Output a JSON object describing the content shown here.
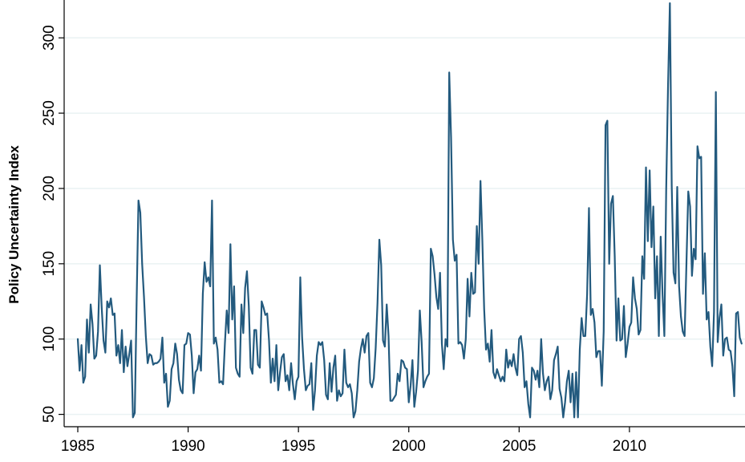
{
  "chart_data": {
    "type": "line",
    "ylabel": "Policy Uncertainty Index",
    "xlim": [
      1985,
      2015
    ],
    "ylim": [
      45,
      323
    ],
    "x_ticks": [
      "1985",
      "1990",
      "1995",
      "2000",
      "2005",
      "2010"
    ],
    "y_ticks": [
      "50",
      "100",
      "150",
      "200",
      "250",
      "300"
    ],
    "grid": true,
    "line_color": "#235a7e",
    "series": [
      {
        "x_start": 1985.0,
        "step": 0.08333,
        "values": [
          100,
          79,
          96,
          71,
          75,
          113,
          91,
          123,
          110,
          87,
          89,
          105,
          149,
          121,
          99,
          91,
          125,
          121,
          127,
          116,
          117,
          89,
          96,
          84,
          106,
          78,
          95,
          82,
          90,
          99,
          48,
          51,
          125,
          192,
          184,
          150,
          128,
          102,
          84,
          90,
          89,
          83,
          84,
          84,
          85,
          87,
          101,
          71,
          77,
          55,
          59,
          80,
          84,
          97,
          90,
          73,
          66,
          64,
          96,
          97,
          104,
          103,
          89,
          64,
          78,
          80,
          89,
          79,
          130,
          151,
          138,
          141,
          135,
          192,
          97,
          101,
          93,
          71,
          72,
          70,
          97,
          119,
          104,
          163,
          113,
          135,
          81,
          77,
          75,
          123,
          104,
          134,
          145,
          122,
          81,
          77,
          106,
          106,
          83,
          81,
          125,
          121,
          116,
          117,
          99,
          71,
          87,
          72,
          96,
          66,
          78,
          88,
          90,
          72,
          76,
          66,
          84,
          70,
          60,
          72,
          75,
          141,
          101,
          80,
          66,
          69,
          70,
          84,
          53,
          66,
          89,
          98,
          96,
          98,
          86,
          63,
          60,
          84,
          65,
          81,
          89,
          59,
          66,
          62,
          64,
          93,
          71,
          68,
          70,
          64,
          48,
          52,
          66,
          85,
          94,
          100,
          91,
          102,
          104,
          71,
          68,
          74,
          94,
          124,
          166,
          149,
          99,
          95,
          123,
          102,
          59,
          59,
          61,
          63,
          77,
          72,
          86,
          85,
          81,
          80,
          58,
          69,
          86,
          55,
          65,
          79,
          119,
          98,
          68,
          72,
          75,
          77,
          160,
          155,
          143,
          128,
          120,
          144,
          97,
          80,
          100,
          95,
          277,
          234,
          166,
          152,
          156,
          97,
          98,
          96,
          87,
          100,
          140,
          115,
          144,
          130,
          131,
          175,
          150,
          205,
          166,
          120,
          93,
          97,
          85,
          106,
          78,
          74,
          80,
          76,
          72,
          75,
          72,
          93,
          81,
          86,
          82,
          90,
          81,
          76,
          100,
          102,
          91,
          68,
          72,
          57,
          48,
          81,
          79,
          73,
          79,
          68,
          100,
          77,
          66,
          72,
          75,
          60,
          66,
          86,
          90,
          95,
          67,
          61,
          48,
          58,
          72,
          79,
          58,
          77,
          48,
          78,
          48,
          93,
          114,
          102,
          102,
          130,
          187,
          116,
          120,
          111,
          88,
          92,
          92,
          69,
          105,
          242,
          245,
          150,
          190,
          195,
          155,
          99,
          127,
          99,
          100,
          122,
          88,
          97,
          108,
          111,
          141,
          127,
          120,
          103,
          106,
          155,
          140,
          214,
          165,
          212,
          161,
          188,
          127,
          155,
          102,
          168,
          130,
          102,
          200,
          268,
          323,
          202,
          144,
          137,
          201,
          135,
          115,
          105,
          102,
          150,
          198,
          188,
          142,
          160,
          153,
          228,
          220,
          221,
          130,
          157,
          113,
          118,
          95,
          82,
          118,
          264,
          98,
          114,
          123,
          89,
          100,
          101,
          93,
          92,
          82,
          62,
          117,
          118,
          101,
          97
        ]
      }
    ]
  }
}
